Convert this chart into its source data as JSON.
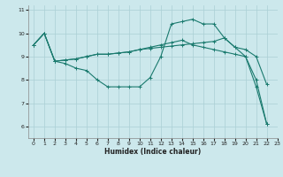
{
  "xlabel": "Humidex (Indice chaleur)",
  "bg_color": "#cce8ec",
  "grid_color": "#aacfd5",
  "line_color": "#1a7a6e",
  "xlim": [
    -0.5,
    23
  ],
  "ylim": [
    5.5,
    11.2
  ],
  "yticks": [
    6,
    7,
    8,
    9,
    10,
    11
  ],
  "xticks": [
    0,
    1,
    2,
    3,
    4,
    5,
    6,
    7,
    8,
    9,
    10,
    11,
    12,
    13,
    14,
    15,
    16,
    17,
    18,
    19,
    20,
    21,
    22,
    23
  ],
  "series": [
    {
      "x": [
        0,
        1,
        2,
        3,
        4,
        5,
        6,
        7,
        8,
        9,
        10,
        11,
        12,
        13,
        14,
        15,
        16,
        17,
        18,
        19,
        20,
        21,
        22
      ],
      "y": [
        9.5,
        10.0,
        8.8,
        8.7,
        8.5,
        8.4,
        8.0,
        7.7,
        7.7,
        7.7,
        7.7,
        8.1,
        9.0,
        10.4,
        10.5,
        10.6,
        10.4,
        10.4,
        9.8,
        9.4,
        9.0,
        7.7,
        6.1
      ]
    },
    {
      "x": [
        0,
        1,
        2,
        3,
        4,
        5,
        6,
        7,
        8,
        9,
        10,
        11,
        12,
        13,
        14,
        15,
        16,
        17,
        18,
        19,
        20,
        21,
        22
      ],
      "y": [
        9.5,
        10.0,
        8.8,
        8.85,
        8.9,
        9.0,
        9.1,
        9.1,
        9.15,
        9.2,
        9.3,
        9.35,
        9.4,
        9.45,
        9.5,
        9.55,
        9.6,
        9.65,
        9.8,
        9.4,
        9.3,
        9.0,
        7.8
      ]
    },
    {
      "x": [
        0,
        1,
        2,
        3,
        4,
        5,
        6,
        7,
        8,
        9,
        10,
        11,
        12,
        13,
        14,
        15,
        16,
        17,
        18,
        19,
        20,
        21,
        22
      ],
      "y": [
        9.5,
        10.0,
        8.8,
        8.85,
        8.9,
        9.0,
        9.1,
        9.1,
        9.15,
        9.2,
        9.3,
        9.4,
        9.5,
        9.6,
        9.7,
        9.5,
        9.4,
        9.3,
        9.2,
        9.1,
        9.0,
        8.0,
        6.1
      ]
    }
  ]
}
